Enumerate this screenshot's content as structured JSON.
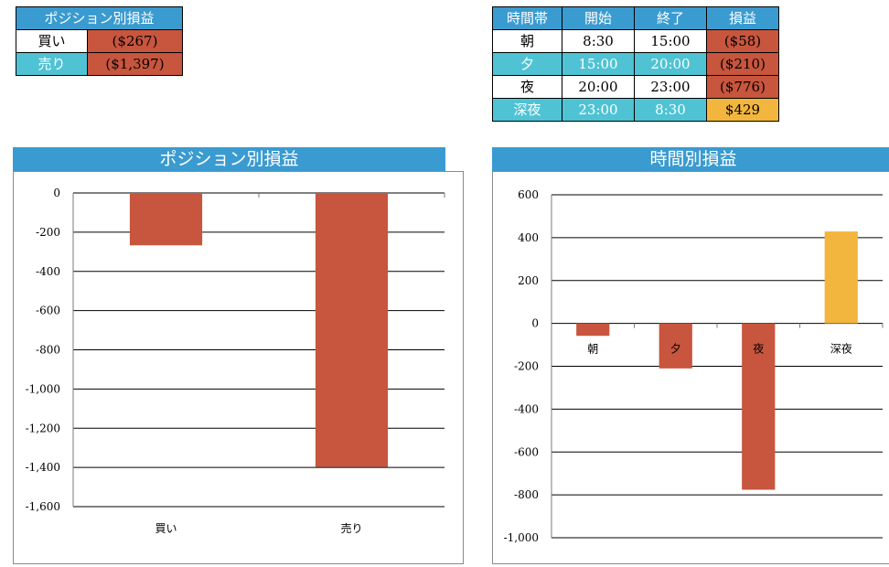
{
  "position_table": {
    "header": "ポジション別損益",
    "rows": [
      {
        "label": "買い",
        "value": "($267)"
      },
      {
        "label": "売り",
        "value": "($1,397)"
      }
    ]
  },
  "time_table": {
    "headers": [
      "時間帯",
      "開始",
      "終了",
      "損益"
    ],
    "rows": [
      {
        "label": "朝",
        "start": "8:30",
        "end": "15:00",
        "pl": "($58)"
      },
      {
        "label": "夕",
        "start": "15:00",
        "end": "20:00",
        "pl": "($210)"
      },
      {
        "label": "夜",
        "start": "20:00",
        "end": "23:00",
        "pl": "($776)"
      },
      {
        "label": "深夜",
        "start": "23:00",
        "end": "8:30",
        "pl": "$429"
      }
    ]
  },
  "colors": {
    "header": "#3a9bd0",
    "cyan": "#4fc3d4",
    "loss": "#c8553d",
    "profit": "#f2b63e"
  },
  "chart_data": [
    {
      "type": "bar",
      "title": "ポジション別損益",
      "categories": [
        "買い",
        "売り"
      ],
      "values": [
        -267,
        -1397
      ],
      "colors": [
        "#c8553d",
        "#c8553d"
      ],
      "ylim": [
        -1600,
        0
      ],
      "yticks": [
        0,
        -200,
        -400,
        -600,
        -800,
        -1000,
        -1200,
        -1400,
        -1600
      ],
      "ytick_labels": [
        "0",
        "-200",
        "-400",
        "-600",
        "-800",
        "-1,000",
        "-1,200",
        "-1,400",
        "-1,600"
      ],
      "grid": true
    },
    {
      "type": "bar",
      "title": "時間別損益",
      "categories": [
        "朝",
        "夕",
        "夜",
        "深夜"
      ],
      "values": [
        -58,
        -210,
        -776,
        429
      ],
      "colors": [
        "#c8553d",
        "#c8553d",
        "#c8553d",
        "#f2b63e"
      ],
      "ylim": [
        -1000,
        600
      ],
      "yticks": [
        600,
        400,
        200,
        0,
        -200,
        -400,
        -600,
        -800,
        -1000
      ],
      "ytick_labels": [
        "600",
        "400",
        "200",
        "0",
        "-200",
        "-400",
        "-600",
        "-800",
        "-1,000"
      ],
      "grid": true
    }
  ]
}
